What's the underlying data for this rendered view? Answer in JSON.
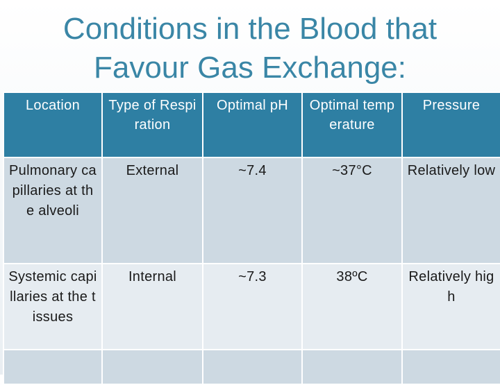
{
  "slide": {
    "title_line1": "Conditions in the Blood that",
    "title_line2": "Favour Gas Exchange:"
  },
  "table": {
    "headers": [
      "Location",
      "Type of Respiration",
      "Optimal pH",
      "Optimal temperature",
      "Pressure"
    ],
    "rows": [
      [
        "Pulmonary capillaries at the alveoli",
        "External",
        "~7.4",
        "~37°C",
        "Relatively low"
      ],
      [
        "Systemic capillaries at the tissues",
        "Internal",
        "~7.3",
        "38ºC",
        "Relatively high"
      ],
      [
        "",
        "",
        "",
        "",
        ""
      ]
    ]
  },
  "colors": {
    "title": "#3a86a6",
    "header_bg": "#2e7fa3",
    "row_dark": "#cdd9e2",
    "row_light": "#e6ecf1"
  }
}
